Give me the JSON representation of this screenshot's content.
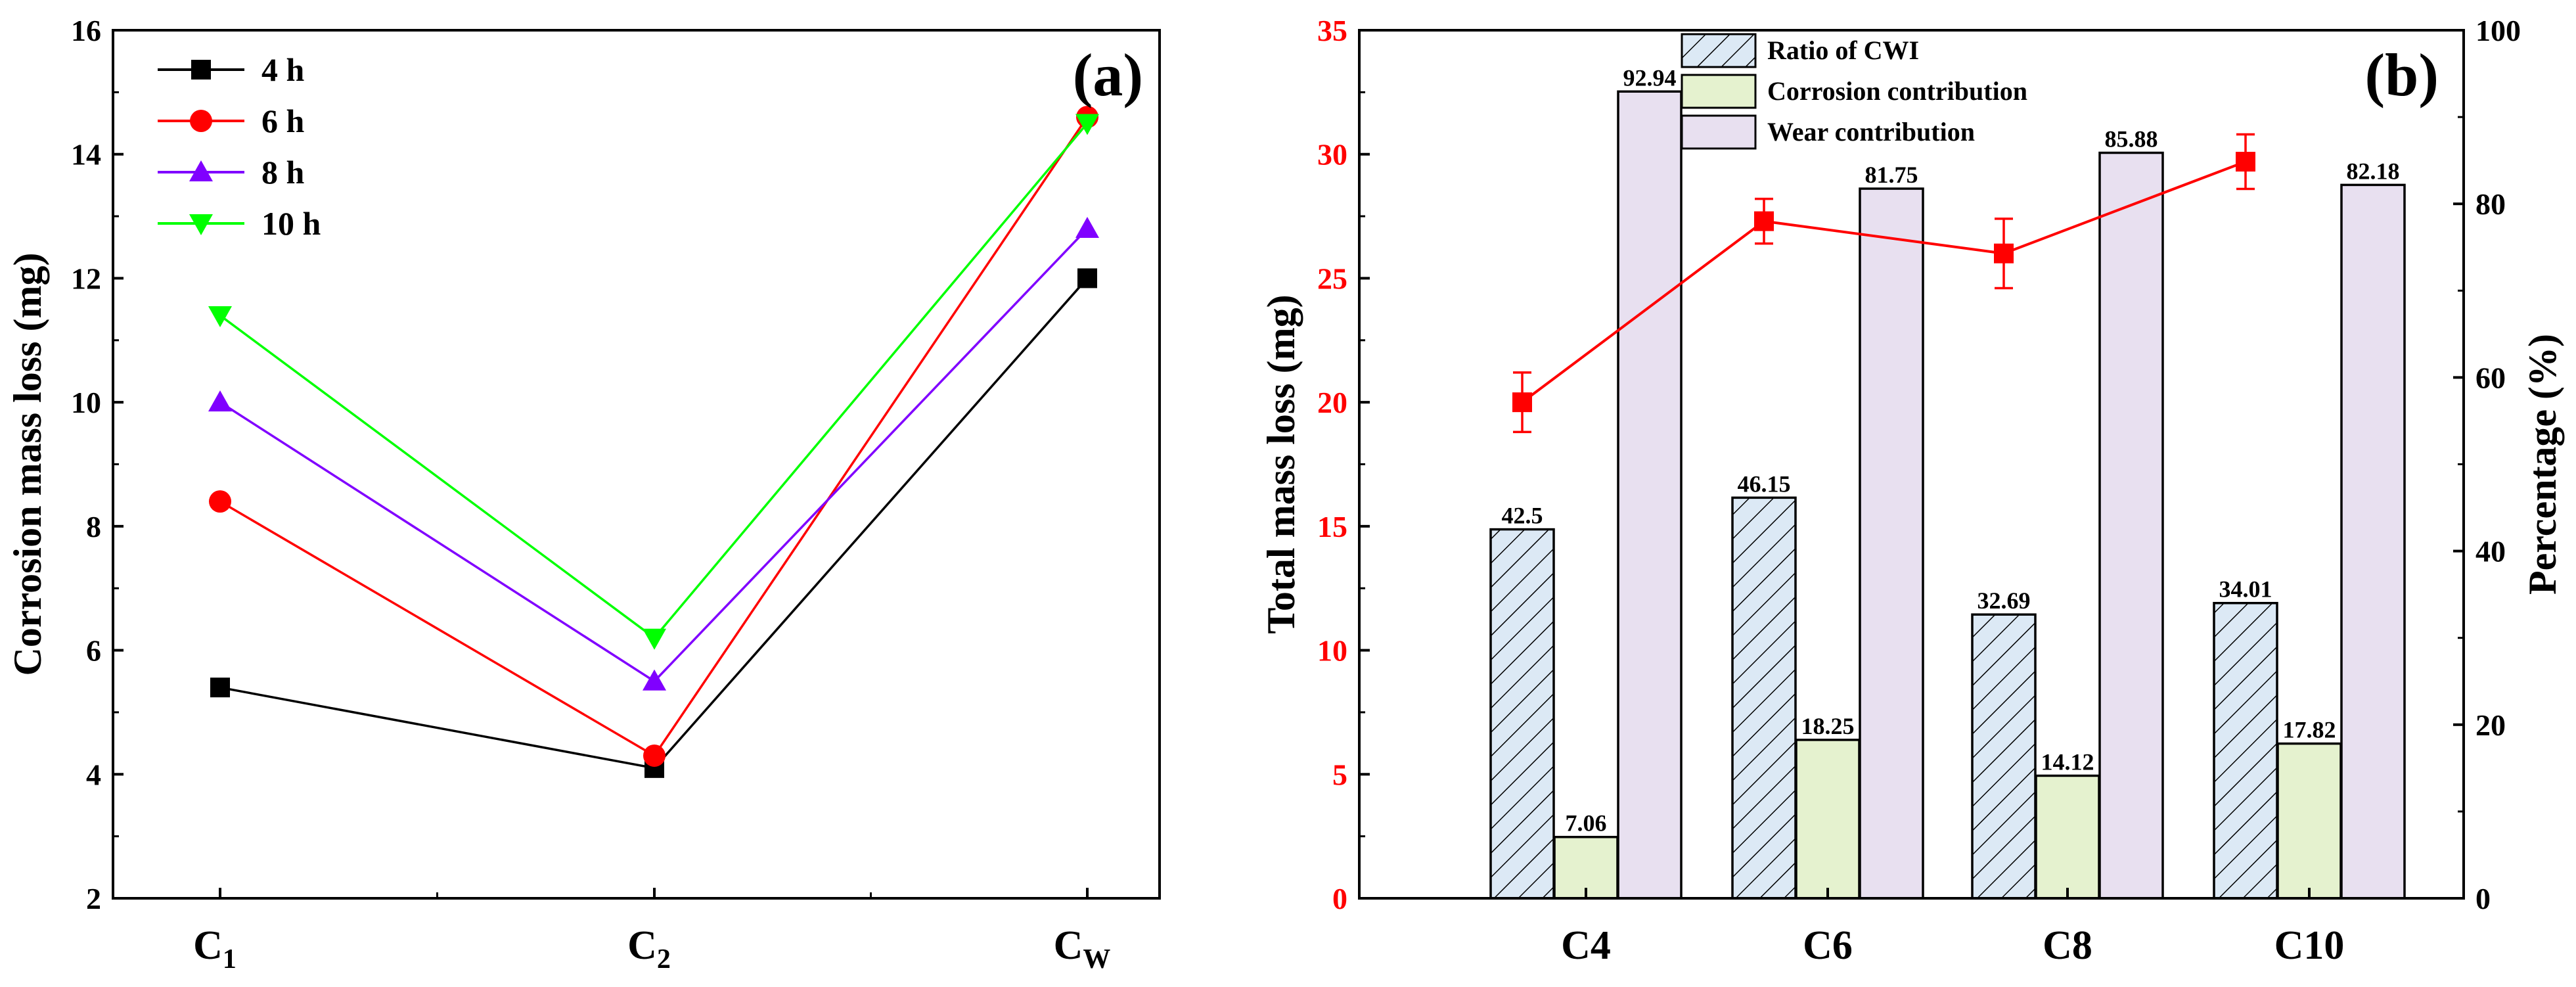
{
  "chart_data": [
    {
      "panel_label": "(a)",
      "type": "line",
      "ylabel": "Corrosion mass loss (mg)",
      "ylim": [
        2,
        16
      ],
      "yticks": [
        "2",
        "4",
        "6",
        "8",
        "10",
        "12",
        "14",
        "16"
      ],
      "categories": [
        {
          "base": "C",
          "sub": "1"
        },
        {
          "base": "C",
          "sub": "2"
        },
        {
          "base": "C",
          "sub": "W"
        }
      ],
      "series": [
        {
          "name": "4 h",
          "color": "#000000",
          "marker": "square",
          "values": [
            5.4,
            4.1,
            12.0
          ]
        },
        {
          "name": "6 h",
          "color": "#ff0000",
          "marker": "circle",
          "values": [
            8.4,
            4.3,
            14.6
          ]
        },
        {
          "name": "8 h",
          "color": "#8000ff",
          "marker": "triangle-up",
          "values": [
            10.0,
            5.5,
            12.8
          ]
        },
        {
          "name": "10 h",
          "color": "#00ff00",
          "marker": "triangle-down",
          "values": [
            11.4,
            6.2,
            14.5
          ]
        }
      ],
      "legend_position": "top-left"
    },
    {
      "panel_label": "(b)",
      "type": "bar",
      "categories": [
        "C4",
        "C6",
        "C8",
        "C10"
      ],
      "ylabel": "Total mass loss (mg)",
      "ylim": [
        0,
        35
      ],
      "yticks": [
        "0",
        "5",
        "10",
        "15",
        "20",
        "25",
        "30",
        "35"
      ],
      "y2label": "Percentage (%)",
      "y2lim": [
        0,
        100
      ],
      "y2ticks": [
        "0",
        "20",
        "40",
        "60",
        "80",
        "100"
      ],
      "bar_series": [
        {
          "name": "Ratio of CWI",
          "fill": "#dce9f5",
          "hatch": true,
          "values": [
            42.5,
            46.15,
            32.69,
            34.01
          ],
          "labels": [
            "42.5",
            "46.15",
            "32.69",
            "34.01"
          ]
        },
        {
          "name": "Corrosion contribution",
          "fill": "#e5f2cf",
          "hatch": false,
          "values": [
            7.06,
            18.25,
            14.12,
            17.82
          ],
          "labels": [
            "7.06",
            "18.25",
            "14.12",
            "17.82"
          ]
        },
        {
          "name": "Wear contribution",
          "fill": "#e8e0f0",
          "hatch": false,
          "values": [
            92.94,
            81.75,
            85.88,
            82.18
          ],
          "labels": [
            "92.94",
            "81.75",
            "85.88",
            "82.18"
          ]
        }
      ],
      "bar_axis": "right",
      "line_series": {
        "name": "Total mass loss",
        "color": "#ff0000",
        "values": [
          20.0,
          27.3,
          26.0,
          29.7
        ],
        "errors": [
          1.2,
          0.9,
          1.4,
          1.1
        ],
        "axis": "left"
      },
      "legend_position": "top-center"
    }
  ]
}
